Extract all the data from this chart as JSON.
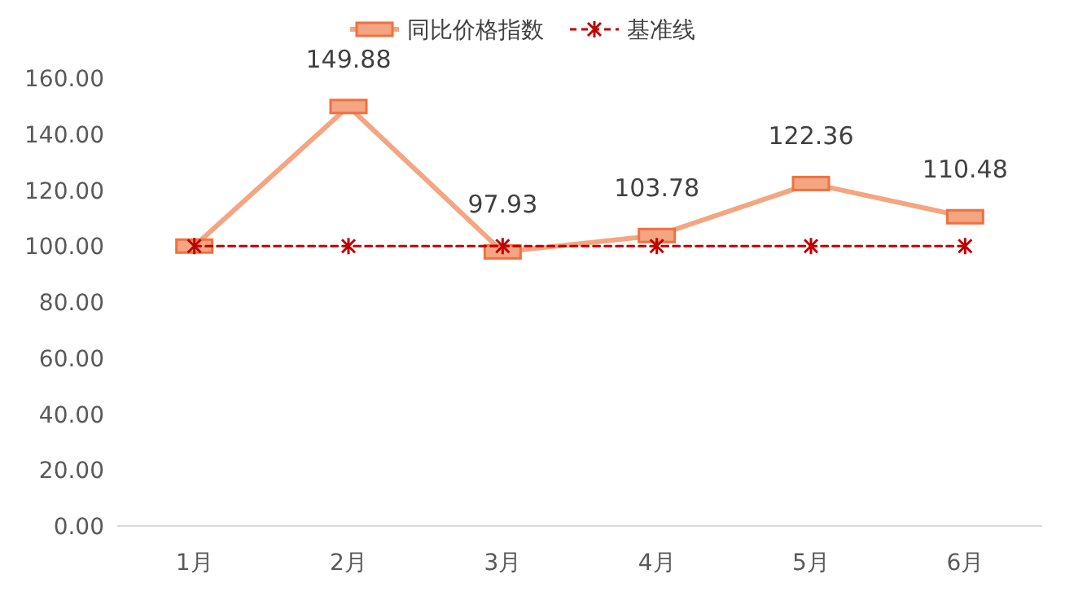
{
  "chart_data": {
    "type": "line",
    "categories": [
      "1月",
      "2月",
      "3月",
      "4月",
      "5月",
      "6月"
    ],
    "series": [
      {
        "name": "同比价格指数",
        "color": "#f4a582",
        "marker": "square",
        "line_style": "solid",
        "values": [
          100,
          149.88,
          97.93,
          103.78,
          122.36,
          110.48
        ],
        "value_labels": [
          null,
          "149.88",
          "97.93",
          "103.78",
          "122.36",
          "110.48"
        ]
      },
      {
        "name": "基准线",
        "color": "#c00000",
        "marker": "cross",
        "line_style": "dashed",
        "values": [
          100,
          100,
          100,
          100,
          100,
          100
        ]
      }
    ],
    "ylim": [
      0,
      160
    ],
    "yticks": [
      {
        "value": 0,
        "label": "0.00"
      },
      {
        "value": 20,
        "label": "20.00"
      },
      {
        "value": 40,
        "label": "40.00"
      },
      {
        "value": 60,
        "label": "60.00"
      },
      {
        "value": 80,
        "label": "80.00"
      },
      {
        "value": 100,
        "label": "100.00"
      },
      {
        "value": 120,
        "label": "120.00"
      },
      {
        "value": 140,
        "label": "140.00"
      },
      {
        "value": 160,
        "label": "160.00"
      }
    ],
    "grid": false,
    "legend": "top"
  }
}
